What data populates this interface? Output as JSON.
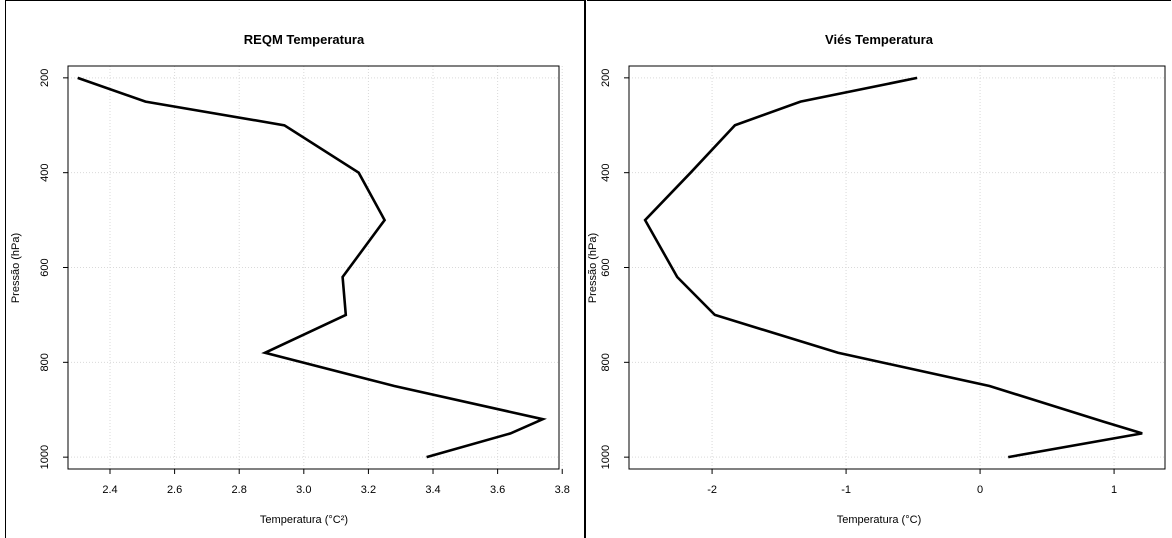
{
  "chart_data": [
    {
      "type": "line",
      "title": "REQM Temperatura",
      "xlabel": "Temperatura (°C²)",
      "ylabel": "Pressão (hPa)",
      "xlim": [
        2.27,
        3.79
      ],
      "ylim": [
        1025,
        175
      ],
      "y_reversed": true,
      "grid": true,
      "xticks": [
        2.4,
        2.6,
        2.8,
        3.0,
        3.2,
        3.4,
        3.6,
        3.8
      ],
      "xtick_labels": [
        "2.4",
        "2.6",
        "2.8",
        "3.0",
        "3.2",
        "3.4",
        "3.6",
        "3.8"
      ],
      "yticks": [
        200,
        400,
        600,
        800,
        1000
      ],
      "ytick_labels": [
        "200",
        "400",
        "600",
        "800",
        "1000"
      ],
      "series": [
        {
          "x": [
            2.3,
            2.51,
            2.94,
            3.17,
            3.25,
            3.12,
            3.13,
            2.88,
            3.28,
            3.74,
            3.64,
            3.38
          ],
          "y": [
            200,
            250,
            300,
            400,
            500,
            620,
            700,
            780,
            850,
            920,
            950,
            1000
          ]
        }
      ]
    },
    {
      "type": "line",
      "title": "Viés Temperatura",
      "xlabel": "Temperatura (°C)",
      "ylabel": "Pressão (hPa)",
      "xlim": [
        -2.62,
        1.38
      ],
      "ylim": [
        1025,
        175
      ],
      "y_reversed": true,
      "grid": true,
      "xticks": [
        -2,
        -1,
        0,
        1
      ],
      "xtick_labels": [
        "-2",
        "-1",
        "0",
        "1"
      ],
      "yticks": [
        200,
        400,
        600,
        800,
        1000
      ],
      "ytick_labels": [
        "200",
        "400",
        "600",
        "800",
        "1000"
      ],
      "series": [
        {
          "x": [
            -0.47,
            -1.34,
            -1.83,
            -2.16,
            -2.5,
            -2.26,
            -1.98,
            -1.06,
            0.07,
            0.92,
            1.21,
            0.21
          ],
          "y": [
            200,
            250,
            300,
            400,
            500,
            620,
            700,
            780,
            850,
            925,
            950,
            1000
          ]
        }
      ]
    }
  ]
}
